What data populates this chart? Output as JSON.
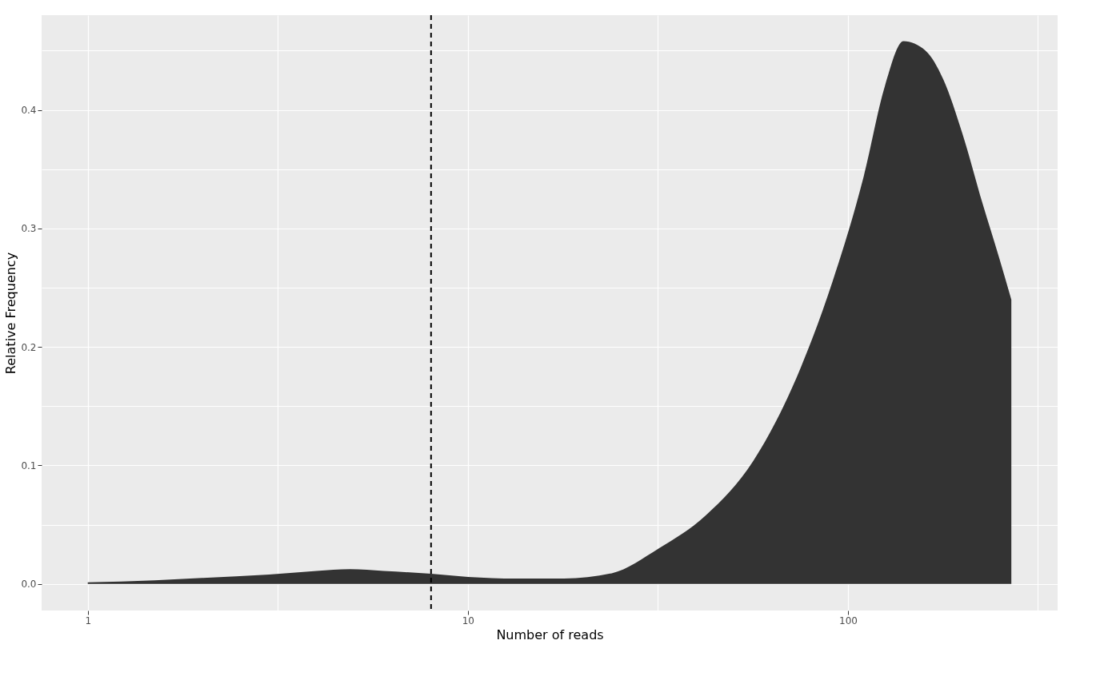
{
  "chart_data": {
    "type": "area",
    "xlabel": "Number of reads",
    "ylabel": "Relative Frequency",
    "log": "x",
    "series": [
      {
        "color": "#333333",
        "x": [
          1,
          1.5,
          2,
          3,
          4,
          4.9,
          6,
          8,
          10,
          13.4,
          17.9,
          23.9,
          31.8,
          42.3,
          56.4,
          75.2,
          91,
          110,
          125,
          140,
          160,
          178,
          200,
          226,
          250,
          269
        ],
        "values": [
          0.0013,
          0.003,
          0.005,
          0.008,
          0.011,
          0.0125,
          0.011,
          0.0086,
          0.006,
          0.0046,
          0.0046,
          0.009,
          0.03,
          0.058,
          0.104,
          0.183,
          0.255,
          0.344,
          0.42,
          0.458,
          0.45,
          0.426,
          0.38,
          0.321,
          0.275,
          0.24
        ]
      }
    ],
    "xlim": [
      0.756,
      356
    ],
    "ylim": [
      -0.0224,
      0.48
    ],
    "xticks": [
      1,
      10,
      100,
      {
        "value": 3.16,
        "label": null
      },
      {
        "value": 31.6,
        "label": null
      },
      {
        "value": 316,
        "label": null
      }
    ],
    "yticks": [
      {
        "value": 0,
        "label": "0.0"
      },
      {
        "value": 0.1,
        "label": "0.1"
      },
      {
        "value": 0.2,
        "label": "0.2"
      },
      {
        "value": 0.3,
        "label": "0.3"
      },
      {
        "value": 0.4,
        "label": "0.4"
      },
      {
        "value": 0.05,
        "label": null
      },
      {
        "value": 0.15,
        "label": null
      },
      {
        "value": 0.25,
        "label": null
      },
      {
        "value": 0.35,
        "label": null
      },
      {
        "value": 0.45,
        "label": null
      }
    ],
    "ref_lines": [
      {
        "axis": "x",
        "value": 8,
        "color": "#000000",
        "line_style": "dashed"
      }
    ],
    "grid": true
  }
}
